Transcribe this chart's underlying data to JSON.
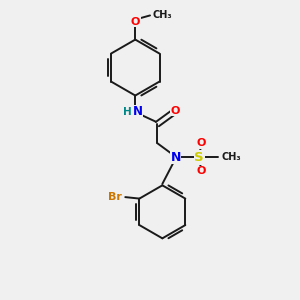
{
  "background_color": "#f0f0f0",
  "bond_color": "#1a1a1a",
  "atom_colors": {
    "N": "#0000ee",
    "O": "#ff0000",
    "S": "#cccc00",
    "Br": "#cc7700",
    "H": "#008888",
    "C": "#1a1a1a"
  },
  "figsize": [
    3.0,
    3.0
  ],
  "dpi": 100
}
